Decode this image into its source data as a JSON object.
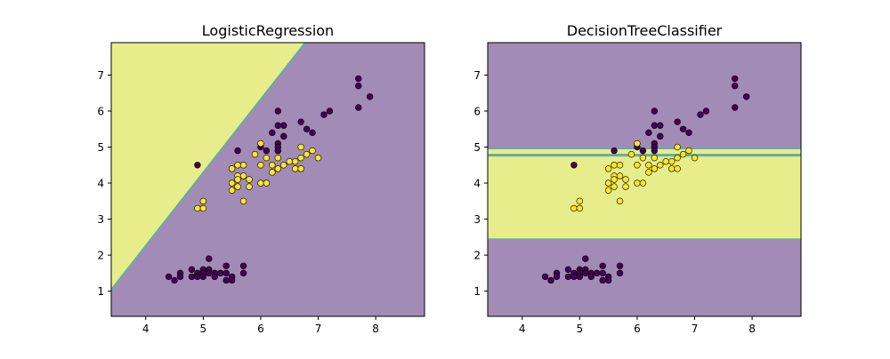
{
  "colors": {
    "class0_region": "#a28bb6",
    "class1_region": "#e8ed8b",
    "boundary": "#4fb89a",
    "class0_point": "#440154",
    "class1_point": "#fde725",
    "point_edge": "#000000"
  },
  "chart_data": [
    {
      "type": "scatter",
      "title": "LogisticRegression",
      "xlim": [
        3.4,
        8.85
      ],
      "ylim": [
        0.3,
        7.9
      ],
      "xticks": [
        4,
        5,
        6,
        7,
        8
      ],
      "yticks": [
        1,
        2,
        3,
        4,
        5,
        6,
        7
      ],
      "grid": false,
      "decision_boundary": {
        "kind": "linear",
        "points": [
          [
            3.4,
            1.05
          ],
          [
            6.77,
            7.9
          ]
        ],
        "class1_side": "upper-left"
      }
    },
    {
      "type": "scatter",
      "title": "DecisionTreeClassifier",
      "xlim": [
        3.4,
        8.85
      ],
      "ylim": [
        0.3,
        7.9
      ],
      "xticks": [
        4,
        5,
        6,
        7,
        8
      ],
      "yticks": [
        1,
        2,
        3,
        4,
        5,
        6,
        7
      ],
      "grid": false,
      "decision_boundary": {
        "kind": "horizontal-bands",
        "bands": [
          {
            "from": 0.3,
            "to": 2.45,
            "class": 0
          },
          {
            "from": 2.45,
            "to": 4.75,
            "class": 1
          },
          {
            "from": 4.75,
            "to": 4.8,
            "class": 0
          },
          {
            "from": 4.8,
            "to": 4.95,
            "class": 1
          },
          {
            "from": 4.95,
            "to": 7.9,
            "class": 0
          }
        ]
      }
    }
  ],
  "points": {
    "class0": [
      [
        4.4,
        1.4
      ],
      [
        4.5,
        1.3
      ],
      [
        4.6,
        1.5
      ],
      [
        4.6,
        1.4
      ],
      [
        4.8,
        1.6
      ],
      [
        4.8,
        1.4
      ],
      [
        4.9,
        1.5
      ],
      [
        4.9,
        1.4
      ],
      [
        5.0,
        1.6
      ],
      [
        5.0,
        1.5
      ],
      [
        5.0,
        1.4
      ],
      [
        5.1,
        1.9
      ],
      [
        5.1,
        1.6
      ],
      [
        5.1,
        1.5
      ],
      [
        5.2,
        1.5
      ],
      [
        5.2,
        1.4
      ],
      [
        5.3,
        1.5
      ],
      [
        5.4,
        1.7
      ],
      [
        5.4,
        1.5
      ],
      [
        5.4,
        1.3
      ],
      [
        5.5,
        1.4
      ],
      [
        5.5,
        1.3
      ],
      [
        5.7,
        1.7
      ],
      [
        5.7,
        1.5
      ],
      [
        4.9,
        4.5
      ],
      [
        5.6,
        4.9
      ],
      [
        6.0,
        5.0
      ],
      [
        6.1,
        4.9
      ],
      [
        6.3,
        5.1
      ],
      [
        6.3,
        5.0
      ],
      [
        6.3,
        4.9
      ],
      [
        6.2,
        5.4
      ],
      [
        6.3,
        5.6
      ],
      [
        6.4,
        5.6
      ],
      [
        6.3,
        6.0
      ],
      [
        6.4,
        5.3
      ],
      [
        6.7,
        5.7
      ],
      [
        6.8,
        5.5
      ],
      [
        6.9,
        5.4
      ],
      [
        7.1,
        5.9
      ],
      [
        7.2,
        6.0
      ],
      [
        7.7,
        6.9
      ],
      [
        7.7,
        6.7
      ],
      [
        7.9,
        6.4
      ],
      [
        7.7,
        6.1
      ]
    ],
    "class1": [
      [
        5.0,
        3.5
      ],
      [
        4.9,
        3.3
      ],
      [
        5.0,
        3.3
      ],
      [
        5.5,
        4.4
      ],
      [
        5.6,
        4.5
      ],
      [
        5.7,
        4.5
      ],
      [
        5.5,
        4.0
      ],
      [
        5.6,
        4.2
      ],
      [
        5.6,
        4.1
      ],
      [
        5.7,
        4.2
      ],
      [
        5.8,
        4.1
      ],
      [
        5.5,
        3.8
      ],
      [
        5.6,
        3.9
      ],
      [
        5.8,
        3.9
      ],
      [
        5.7,
        3.5
      ],
      [
        6.0,
        4.0
      ],
      [
        6.1,
        4.0
      ],
      [
        6.0,
        5.1
      ],
      [
        5.9,
        4.8
      ],
      [
        6.0,
        4.5
      ],
      [
        6.1,
        4.7
      ],
      [
        6.2,
        4.5
      ],
      [
        6.2,
        4.3
      ],
      [
        6.3,
        4.7
      ],
      [
        6.3,
        4.4
      ],
      [
        6.4,
        4.5
      ],
      [
        6.5,
        4.6
      ],
      [
        6.6,
        4.6
      ],
      [
        6.6,
        4.4
      ],
      [
        6.7,
        4.4
      ],
      [
        6.7,
        4.7
      ],
      [
        6.7,
        5.0
      ],
      [
        6.8,
        4.8
      ],
      [
        6.9,
        4.9
      ],
      [
        7.0,
        4.7
      ]
    ]
  }
}
